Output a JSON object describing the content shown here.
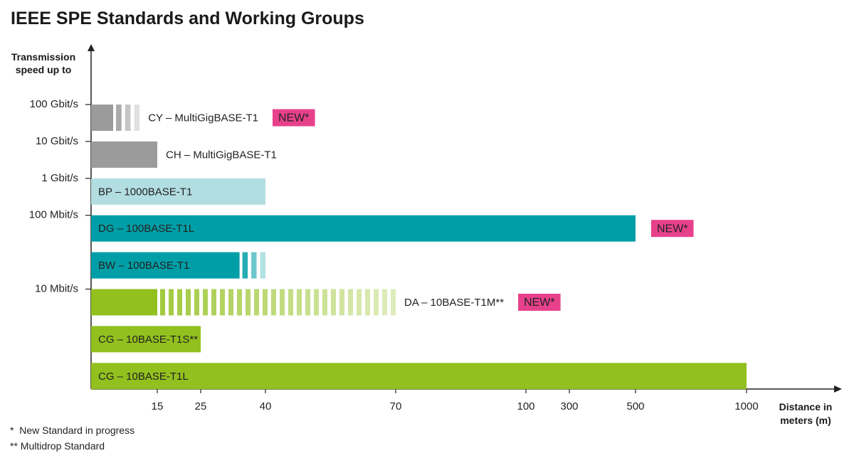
{
  "chart_data": {
    "type": "bar",
    "title": "IEEE SPE Standards and Working Groups",
    "y_label": "Transmission speed up to",
    "x_label": "Distance in meters (m)",
    "xticks": [
      15,
      25,
      40,
      70,
      100,
      300,
      500,
      1000
    ],
    "bars": [
      {
        "label": "CY – MultiGigBASE-T1",
        "speed": "100 Gbit/s",
        "value": 5,
        "planned": 11,
        "color": "#9b9b9b",
        "badge": "NEW*"
      },
      {
        "label": "CH – MultiGigBASE-T1",
        "speed": "10 Gbit/s",
        "value": 15,
        "color": "#9b9b9b"
      },
      {
        "label": "BP – 1000BASE-T1",
        "speed": "1 Gbit/s",
        "value": 40,
        "color": "#b2dde1"
      },
      {
        "label": "DG – 100BASE-T1L",
        "speed": "100 Mbit/s",
        "value": 500,
        "color": "#009ea6",
        "badge": "NEW*"
      },
      {
        "label": "BW – 100BASE-T1",
        "value": 34,
        "planned": 40,
        "color": "#009ea6"
      },
      {
        "label": "DA – 10BASE-T1M**",
        "speed": "10 Mbit/s",
        "value": 15,
        "planned": 70,
        "color": "#92c01e",
        "badge": "NEW*"
      },
      {
        "label": "CG – 10BASE-T1S**",
        "value": 25,
        "color": "#92c01e"
      },
      {
        "label": "CG – 10BASE-T1L",
        "value": 1000,
        "color": "#92c01e"
      }
    ],
    "footnotes": [
      "*  New Standard in progress",
      "** Multidrop Standard"
    ]
  }
}
